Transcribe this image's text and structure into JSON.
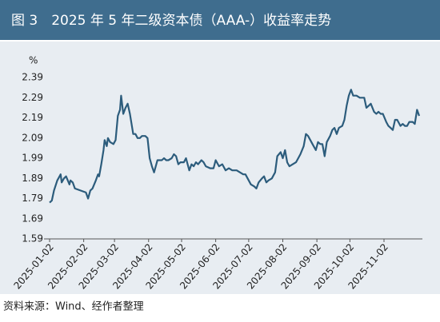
{
  "chart_data": {
    "type": "line",
    "title": "图 3　2025 年 5 年二级资本债（AAA-）收益率走势",
    "y_label": "%",
    "source": "资料来源：Wind、经作者整理",
    "color": "#2c5c7c",
    "x": [
      "2025-01-02",
      "2025-01-04",
      "2025-01-06",
      "2025-01-09",
      "2025-01-10",
      "2025-01-12",
      "2025-01-13",
      "2025-01-15",
      "2025-01-17",
      "2025-01-20",
      "2025-01-21",
      "2025-01-23",
      "2025-01-25",
      "2025-01-30",
      "2025-02-04",
      "2025-02-06",
      "2025-02-08",
      "2025-02-10",
      "2025-02-13",
      "2025-02-15",
      "2025-02-16",
      "2025-02-18",
      "2025-02-20",
      "2025-02-21",
      "2025-02-23",
      "2025-02-24",
      "2025-02-26",
      "2025-03-01",
      "2025-03-03",
      "2025-03-05",
      "2025-03-07",
      "2025-03-08",
      "2025-03-10",
      "2025-03-12",
      "2025-03-14",
      "2025-03-16",
      "2025-03-19",
      "2025-03-21",
      "2025-03-23",
      "2025-03-25",
      "2025-03-27",
      "2025-03-30",
      "2025-04-01",
      "2025-04-03",
      "2025-04-05",
      "2025-04-07",
      "2025-04-10",
      "2025-04-12",
      "2025-04-14",
      "2025-04-16",
      "2025-04-18",
      "2025-04-20",
      "2025-04-23",
      "2025-04-25",
      "2025-04-27",
      "2025-04-29",
      "2025-05-01",
      "2025-05-04",
      "2025-05-06",
      "2025-05-09",
      "2025-05-11",
      "2025-05-13",
      "2025-05-15",
      "2025-05-17",
      "2025-05-20",
      "2025-05-22",
      "2025-05-24",
      "2025-05-28",
      "2025-05-31",
      "2025-06-02",
      "2025-06-05",
      "2025-06-08",
      "2025-06-11",
      "2025-06-14",
      "2025-06-17",
      "2025-06-21",
      "2025-06-24",
      "2025-06-27",
      "2025-06-29",
      "2025-07-02",
      "2025-07-04",
      "2025-07-07",
      "2025-07-09",
      "2025-07-11",
      "2025-07-14",
      "2025-07-16",
      "2025-07-18",
      "2025-07-20",
      "2025-07-23",
      "2025-07-26",
      "2025-07-28",
      "2025-07-31",
      "2025-08-02",
      "2025-08-04",
      "2025-08-06",
      "2025-08-08",
      "2025-08-11",
      "2025-08-14",
      "2025-08-16",
      "2025-08-18",
      "2025-08-21",
      "2025-08-23",
      "2025-08-25",
      "2025-08-27",
      "2025-08-29",
      "2025-09-01",
      "2025-09-03",
      "2025-09-05",
      "2025-09-07",
      "2025-09-09",
      "2025-09-11",
      "2025-09-14",
      "2025-09-16",
      "2025-09-18",
      "2025-09-20",
      "2025-09-22",
      "2025-09-25",
      "2025-09-27",
      "2025-09-29",
      "2025-10-01",
      "2025-10-03",
      "2025-10-05",
      "2025-10-08",
      "2025-10-11",
      "2025-10-15",
      "2025-10-17",
      "2025-10-19",
      "2025-10-21",
      "2025-10-24",
      "2025-10-26",
      "2025-10-28",
      "2025-10-30",
      "2025-11-01",
      "2025-11-04",
      "2025-11-06",
      "2025-11-08",
      "2025-11-10",
      "2025-11-12",
      "2025-11-14",
      "2025-11-17",
      "2025-11-19",
      "2025-11-21",
      "2025-11-23",
      "2025-11-25",
      "2025-11-28",
      "2025-11-30",
      "2025-12-02",
      "2025-12-04"
    ],
    "values": [
      1.77,
      1.78,
      1.83,
      1.88,
      1.89,
      1.91,
      1.87,
      1.89,
      1.9,
      1.86,
      1.88,
      1.87,
      1.84,
      1.83,
      1.82,
      1.79,
      1.83,
      1.84,
      1.88,
      1.91,
      1.9,
      1.96,
      2.03,
      2.08,
      2.05,
      2.09,
      2.07,
      2.06,
      2.08,
      2.2,
      2.23,
      2.3,
      2.21,
      2.24,
      2.26,
      2.21,
      2.11,
      2.11,
      2.09,
      2.09,
      2.1,
      2.1,
      2.09,
      1.99,
      1.95,
      1.92,
      1.98,
      1.98,
      1.98,
      1.99,
      1.98,
      1.98,
      1.99,
      2.01,
      2.0,
      1.96,
      1.97,
      1.97,
      1.99,
      1.93,
      1.96,
      1.95,
      1.97,
      1.96,
      1.98,
      1.97,
      1.95,
      1.94,
      1.94,
      1.98,
      1.95,
      1.96,
      1.93,
      1.94,
      1.93,
      1.93,
      1.92,
      1.91,
      1.91,
      1.88,
      1.86,
      1.85,
      1.84,
      1.87,
      1.89,
      1.9,
      1.87,
      1.88,
      1.89,
      1.92,
      2.0,
      2.02,
      1.99,
      2.03,
      1.97,
      1.95,
      1.96,
      1.97,
      1.99,
      2.01,
      2.05,
      2.11,
      2.1,
      2.08,
      2.06,
      2.03,
      2.07,
      2.06,
      2.06,
      2.0,
      2.07,
      2.1,
      2.13,
      2.14,
      2.11,
      2.14,
      2.15,
      2.18,
      2.25,
      2.3,
      2.33,
      2.3,
      2.3,
      2.29,
      2.29,
      2.24,
      2.25,
      2.26,
      2.22,
      2.21,
      2.22,
      2.21,
      2.21,
      2.17,
      2.15,
      2.14,
      2.13,
      2.18,
      2.18,
      2.15,
      2.16,
      2.15,
      2.15,
      2.17,
      2.17,
      2.16,
      2.23,
      2.2
    ],
    "xlim": [
      "2025-01-02",
      "2025-12-04"
    ],
    "xticks": [
      "2025-01-02",
      "2025-02-02",
      "2025-03-02",
      "2025-04-02",
      "2025-05-02",
      "2025-06-02",
      "2025-07-02",
      "2025-08-02",
      "2025-09-02",
      "2025-10-02",
      "2025-11-02"
    ],
    "ylim": [
      1.59,
      2.39
    ],
    "yticks": [
      1.59,
      1.69,
      1.79,
      1.89,
      1.99,
      2.09,
      2.19,
      2.29,
      2.39
    ],
    "grid": false
  }
}
